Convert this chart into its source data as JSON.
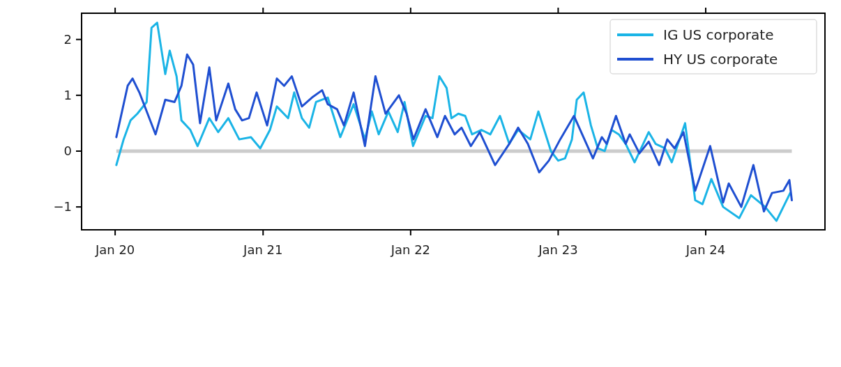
{
  "chart_data": {
    "type": "line",
    "xlim": [
      "2019-10-10",
      "2024-10-22"
    ],
    "xticks": [
      {
        "value": "2020-01-01",
        "label": "Jan 20"
      },
      {
        "value": "2021-01-01",
        "label": "Jan 21"
      },
      {
        "value": "2022-01-01",
        "label": "Jan 22"
      },
      {
        "value": "2023-01-01",
        "label": "Jan 23"
      },
      {
        "value": "2024-01-01",
        "label": "Jan 24"
      }
    ],
    "ylim": [
      -1.41,
      2.47
    ],
    "yticks": [
      {
        "value": -1,
        "label": "−1"
      },
      0,
      1,
      2
    ],
    "legend": "top right",
    "line_style": "solid",
    "ref_lines": [
      {
        "axis": "y",
        "value": 0,
        "label": null,
        "color": "#cccccc"
      }
    ],
    "series": [
      {
        "name": "IG US corporate",
        "color": "#1ab4e6",
        "x": [
          "2020-01-04",
          "2020-01-22",
          "2020-02-08",
          "2020-02-25",
          "2020-03-19",
          "2020-03-31",
          "2020-04-14",
          "2020-05-04",
          "2020-05-15",
          "2020-06-01",
          "2020-06-13",
          "2020-07-05",
          "2020-07-23",
          "2020-08-21",
          "2020-09-12",
          "2020-10-07",
          "2020-11-03",
          "2020-12-02",
          "2020-12-25",
          "2021-01-18",
          "2021-02-04",
          "2021-03-04",
          "2021-03-19",
          "2021-04-07",
          "2021-04-25",
          "2021-05-12",
          "2021-06-10",
          "2021-07-11",
          "2021-08-13",
          "2021-09-10",
          "2021-09-27",
          "2021-10-14",
          "2021-11-07",
          "2021-11-30",
          "2021-12-17",
          "2022-01-07",
          "2022-02-07",
          "2022-02-24",
          "2022-03-13",
          "2022-03-31",
          "2022-04-12",
          "2022-04-29",
          "2022-05-16",
          "2022-06-02",
          "2022-06-25",
          "2022-07-17",
          "2022-08-10",
          "2022-09-02",
          "2022-09-24",
          "2022-10-24",
          "2022-11-13",
          "2022-12-14",
          "2023-01-01",
          "2023-01-18",
          "2023-02-04",
          "2023-02-16",
          "2023-03-05",
          "2023-03-23",
          "2023-04-09",
          "2023-04-26",
          "2023-05-13",
          "2023-05-31",
          "2023-06-17",
          "2023-07-09",
          "2023-08-13",
          "2023-08-30",
          "2023-09-22",
          "2023-10-09",
          "2023-11-11",
          "2023-12-06",
          "2023-12-24",
          "2024-01-15",
          "2024-02-13",
          "2024-03-24",
          "2024-04-22",
          "2024-05-27",
          "2024-06-24",
          "2024-07-28"
        ],
        "values": [
          -0.25,
          0.21,
          0.55,
          0.67,
          0.88,
          2.21,
          2.3,
          1.38,
          1.8,
          1.34,
          0.55,
          0.38,
          0.09,
          0.59,
          0.34,
          0.59,
          0.21,
          0.25,
          0.05,
          0.38,
          0.8,
          0.59,
          1.05,
          0.59,
          0.42,
          0.88,
          0.96,
          0.25,
          0.84,
          0.21,
          0.71,
          0.3,
          0.71,
          0.34,
          0.88,
          0.09,
          0.63,
          0.59,
          1.34,
          1.13,
          0.59,
          0.67,
          0.63,
          0.3,
          0.38,
          0.3,
          0.63,
          0.13,
          0.38,
          0.21,
          0.71,
          0.0,
          -0.17,
          -0.13,
          0.21,
          0.92,
          1.05,
          0.46,
          0.05,
          0.0,
          0.38,
          0.3,
          0.13,
          -0.2,
          0.34,
          0.13,
          0.05,
          -0.2,
          0.5,
          -0.88,
          -0.95,
          -0.5,
          -1.0,
          -1.2,
          -0.79,
          -1.0,
          -1.25,
          -0.75
        ]
      },
      {
        "name": "HY US corporate",
        "color": "#1f4fd1",
        "x": [
          "2020-01-04",
          "2020-02-01",
          "2020-02-13",
          "2020-03-01",
          "2020-04-10",
          "2020-05-04",
          "2020-05-27",
          "2020-06-13",
          "2020-06-27",
          "2020-07-12",
          "2020-07-29",
          "2020-08-21",
          "2020-09-07",
          "2020-10-07",
          "2020-10-24",
          "2020-11-10",
          "2020-11-27",
          "2020-12-16",
          "2021-01-11",
          "2021-02-04",
          "2021-02-22",
          "2021-03-13",
          "2021-04-07",
          "2021-05-02",
          "2021-05-27",
          "2021-06-10",
          "2021-07-03",
          "2021-07-20",
          "2021-08-13",
          "2021-09-10",
          "2021-10-06",
          "2021-10-31",
          "2021-12-03",
          "2021-12-22",
          "2022-01-08",
          "2022-02-07",
          "2022-03-08",
          "2022-03-27",
          "2022-04-20",
          "2022-05-07",
          "2022-05-30",
          "2022-06-21",
          "2022-07-29",
          "2022-09-02",
          "2022-09-24",
          "2022-10-18",
          "2022-11-15",
          "2022-12-09",
          "2023-01-06",
          "2023-02-09",
          "2023-03-28",
          "2023-04-19",
          "2023-05-01",
          "2023-05-24",
          "2023-06-17",
          "2023-06-27",
          "2023-07-21",
          "2023-08-13",
          "2023-09-08",
          "2023-09-28",
          "2023-10-16",
          "2023-11-07",
          "2023-12-06",
          "2024-01-12",
          "2024-02-13",
          "2024-02-27",
          "2024-03-29",
          "2024-04-28",
          "2024-05-24",
          "2024-06-13",
          "2024-07-11",
          "2024-07-26",
          "2024-08-01"
        ],
        "values": [
          0.25,
          1.17,
          1.3,
          1.05,
          0.3,
          0.92,
          0.88,
          1.17,
          1.73,
          1.55,
          0.5,
          1.5,
          0.55,
          1.21,
          0.75,
          0.55,
          0.59,
          1.05,
          0.46,
          1.3,
          1.17,
          1.34,
          0.8,
          0.96,
          1.09,
          0.84,
          0.75,
          0.46,
          1.05,
          0.09,
          1.34,
          0.67,
          1.0,
          0.67,
          0.21,
          0.75,
          0.25,
          0.63,
          0.3,
          0.42,
          0.09,
          0.34,
          -0.25,
          0.13,
          0.42,
          0.13,
          -0.38,
          -0.17,
          0.21,
          0.63,
          -0.13,
          0.25,
          0.13,
          0.63,
          0.13,
          0.3,
          -0.04,
          0.17,
          -0.25,
          0.21,
          0.05,
          0.34,
          -0.71,
          0.09,
          -0.92,
          -0.58,
          -1.0,
          -0.25,
          -1.08,
          -0.75,
          -0.71,
          -0.52,
          -0.88
        ]
      }
    ]
  }
}
